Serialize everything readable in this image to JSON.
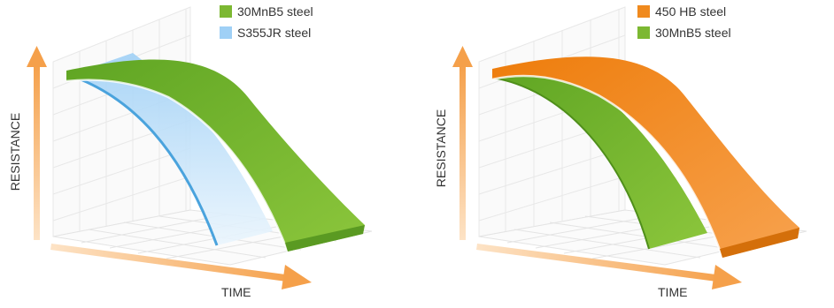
{
  "colors": {
    "green": "#7cb832",
    "green_dark": "#4f8f1a",
    "blue": "#9fd0f6",
    "blue_line": "#4aa3dd",
    "orange": "#f08a1e",
    "orange_dark": "#d46f0a",
    "axis_orange": "#f5a04a",
    "grid": "#e6e6e6"
  },
  "chart_data": [
    {
      "type": "area",
      "xlabel": "TIME",
      "ylabel": "RESISTANCE",
      "legend_position": "top-right",
      "grid": true,
      "series": [
        {
          "name": "30MnB5 steel",
          "color": "#7cb832"
        },
        {
          "name": "S355JR steel",
          "color": "#9fd0f6"
        }
      ]
    },
    {
      "type": "area",
      "xlabel": "TIME",
      "ylabel": "RESISTANCE",
      "legend_position": "top-right",
      "grid": true,
      "series": [
        {
          "name": "450 HB steel",
          "color": "#f08a1e"
        },
        {
          "name": "30MnB5 steel",
          "color": "#7cb832"
        }
      ]
    }
  ]
}
